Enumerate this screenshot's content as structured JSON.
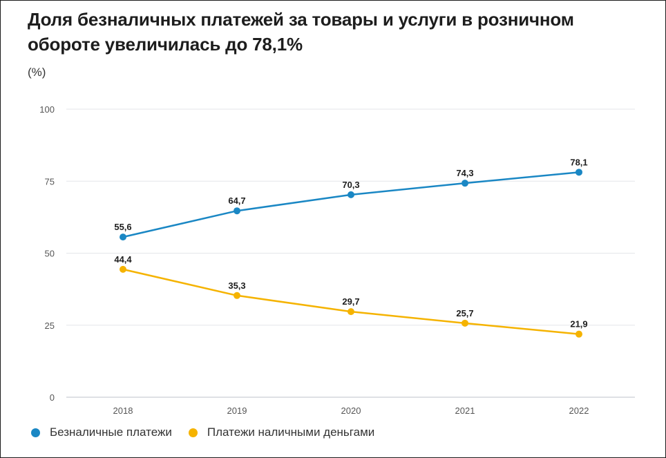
{
  "chart_data": {
    "type": "line",
    "title": "Доля безналичных платежей за товары и услуги в розничном обороте увеличилась до 78,1%",
    "unit_label": "(%)",
    "categories": [
      "2018",
      "2019",
      "2020",
      "2021",
      "2022"
    ],
    "ylim": [
      0,
      100
    ],
    "yticks": [
      "0",
      "25",
      "50",
      "75",
      "100"
    ],
    "grid": true,
    "legend_position": "bottom-left",
    "series": [
      {
        "name": "Безналичные платежи",
        "color": "#1a87c4",
        "values": [
          55.6,
          64.7,
          70.3,
          74.3,
          78.1
        ],
        "labels": [
          "55,6",
          "64,7",
          "70,3",
          "74,3",
          "78,1"
        ]
      },
      {
        "name": "Платежи наличными деньгами",
        "color": "#f5b300",
        "values": [
          44.4,
          35.3,
          29.7,
          25.7,
          21.9
        ],
        "labels": [
          "44,4",
          "35,3",
          "29,7",
          "25,7",
          "21,9"
        ]
      }
    ]
  }
}
